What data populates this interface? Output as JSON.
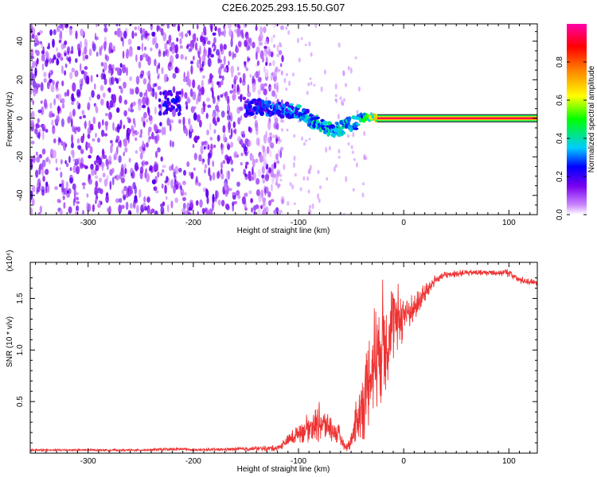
{
  "title": "C2E6.2025.293.15.50.G07",
  "chart_data": [
    {
      "type": "heatmap",
      "name": "spectrogram",
      "xlabel": "Height of straight line (km)",
      "ylabel": "Frequency (Hz)",
      "xlim": [
        -355,
        127
      ],
      "ylim": [
        -50,
        49
      ],
      "xticks": [
        -300,
        -200,
        -100,
        0,
        100
      ],
      "yticks": [
        -40,
        -20,
        0,
        20,
        40
      ],
      "colorbar": {
        "label": "Normalized spectral amplitude",
        "ticks": [
          "0.0",
          "0.2",
          "0.4",
          "0.6",
          "0.8"
        ],
        "tick_values": [
          0.0,
          0.2,
          0.4,
          0.6,
          0.8
        ],
        "range": [
          0,
          1
        ],
        "colors": [
          "#ffffff",
          "#cc88ff",
          "#7700ee",
          "#0000ff",
          "#00ccff",
          "#00ff00",
          "#ffff00",
          "#ff8800",
          "#ff0000",
          "#ff00aa"
        ]
      },
      "noise_region_x": [
        -355,
        -125
      ],
      "signal_track": [
        {
          "x": -150,
          "y": 5,
          "amp": 0.25
        },
        {
          "x": -140,
          "y": 6,
          "amp": 0.25
        },
        {
          "x": -125,
          "y": 5,
          "amp": 0.3
        },
        {
          "x": -110,
          "y": 4,
          "amp": 0.3
        },
        {
          "x": -100,
          "y": 3,
          "amp": 0.35
        },
        {
          "x": -95,
          "y": 2,
          "amp": 0.35
        },
        {
          "x": -85,
          "y": -2,
          "amp": 0.4
        },
        {
          "x": -75,
          "y": -5,
          "amp": 0.4
        },
        {
          "x": -65,
          "y": -6,
          "amp": 0.4
        },
        {
          "x": -55,
          "y": -4,
          "amp": 0.4
        },
        {
          "x": -45,
          "y": -2,
          "amp": 0.35
        },
        {
          "x": -35,
          "y": 1,
          "amp": 0.5
        },
        {
          "x": -25,
          "y": 0,
          "amp": 0.7
        },
        {
          "x": -15,
          "y": 0,
          "amp": 0.8
        },
        {
          "x": 0,
          "y": 0,
          "amp": 0.85
        },
        {
          "x": 50,
          "y": 0,
          "amp": 0.9
        },
        {
          "x": 127,
          "y": 0,
          "amp": 0.9
        }
      ],
      "steady_line": {
        "x_start": -25,
        "x_end": 127,
        "y": 0
      }
    },
    {
      "type": "line",
      "name": "snr",
      "xlabel": "Height of straight line (km)",
      "ylabel": "SNR (10 * v/v)",
      "exponent_label": "(x10⁴)",
      "xlim": [
        -355,
        127
      ],
      "ylim": [
        0,
        1.85
      ],
      "xticks": [
        -300,
        -200,
        -100,
        0,
        100
      ],
      "yticks": [
        0.5,
        1.0,
        1.5
      ],
      "ytick_labels": [
        "0.5",
        "1.0",
        "1.5"
      ],
      "color": "#ee3333",
      "series": [
        {
          "name": "SNR",
          "x": [
            -355,
            -300,
            -250,
            -210,
            -200,
            -150,
            -120,
            -110,
            -100,
            -90,
            -80,
            -70,
            -60,
            -55,
            -50,
            -45,
            -40,
            -35,
            -30,
            -25,
            -20,
            -15,
            -10,
            -5,
            0,
            10,
            20,
            30,
            40,
            60,
            80,
            100,
            110,
            127
          ],
          "y": [
            0.03,
            0.03,
            0.03,
            0.04,
            0.03,
            0.04,
            0.05,
            0.12,
            0.2,
            0.25,
            0.3,
            0.25,
            0.15,
            0.05,
            0.12,
            0.3,
            0.45,
            0.6,
            0.85,
            1.0,
            1.1,
            1.15,
            1.25,
            1.3,
            1.35,
            1.4,
            1.55,
            1.68,
            1.73,
            1.75,
            1.75,
            1.75,
            1.68,
            1.65
          ],
          "spread": [
            0.01,
            0.01,
            0.01,
            0.02,
            0.01,
            0.02,
            0.03,
            0.06,
            0.1,
            0.15,
            0.2,
            0.15,
            0.1,
            0.03,
            0.1,
            0.25,
            0.35,
            0.45,
            0.55,
            0.6,
            0.6,
            0.55,
            0.45,
            0.35,
            0.25,
            0.15,
            0.1,
            0.05,
            0.04,
            0.03,
            0.03,
            0.04,
            0.04,
            0.03
          ]
        }
      ]
    }
  ]
}
